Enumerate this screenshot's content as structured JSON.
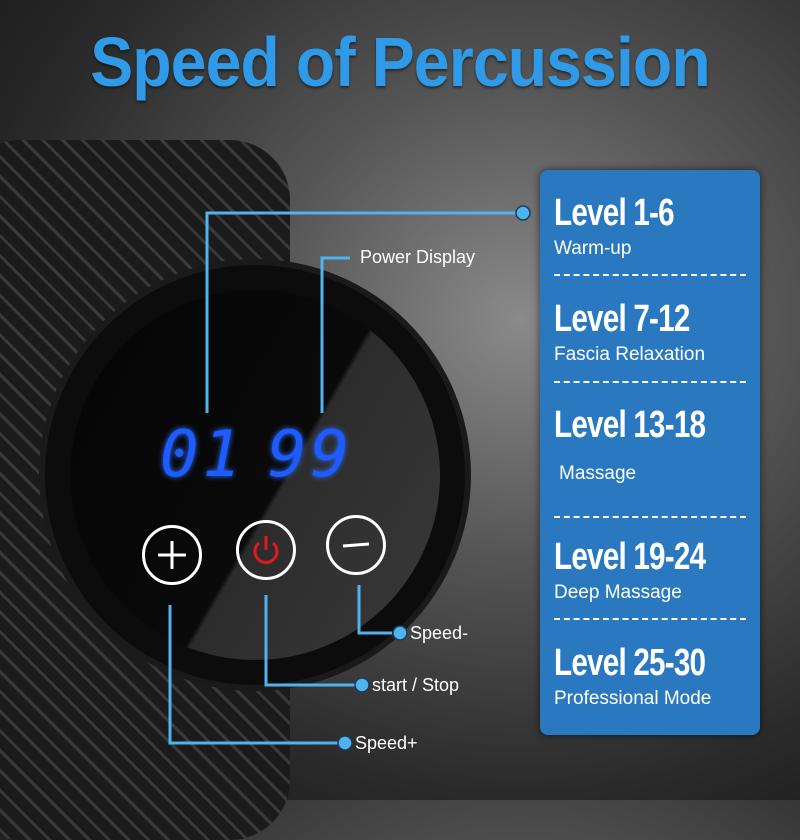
{
  "title": "Speed of Percussion",
  "display": {
    "left": "01",
    "right": "99"
  },
  "callouts": {
    "power_display": "Power Display",
    "speed_minus": "Speed-",
    "start_stop": "start / Stop",
    "speed_plus": "Speed+"
  },
  "buttons": {
    "plus_icon": "plus-icon",
    "power_icon": "power-icon",
    "minus_icon": "minus-icon"
  },
  "levels": [
    {
      "level": "Level 1-6",
      "mode": "Warm-up"
    },
    {
      "level": "Level 7-12",
      "mode": "Fascia Relaxation"
    },
    {
      "level": "Level 13-18",
      "mode": "Massage"
    },
    {
      "level": "Level 19-24",
      "mode": "Deep Massage"
    },
    {
      "level": "Level 25-30",
      "mode": "Professional Mode"
    }
  ],
  "colors": {
    "title": "#2f9be8",
    "panel": "#2a78c0",
    "leader": "#4fb3f0",
    "digits": "#1e5cff",
    "power": "#e01b1b"
  }
}
